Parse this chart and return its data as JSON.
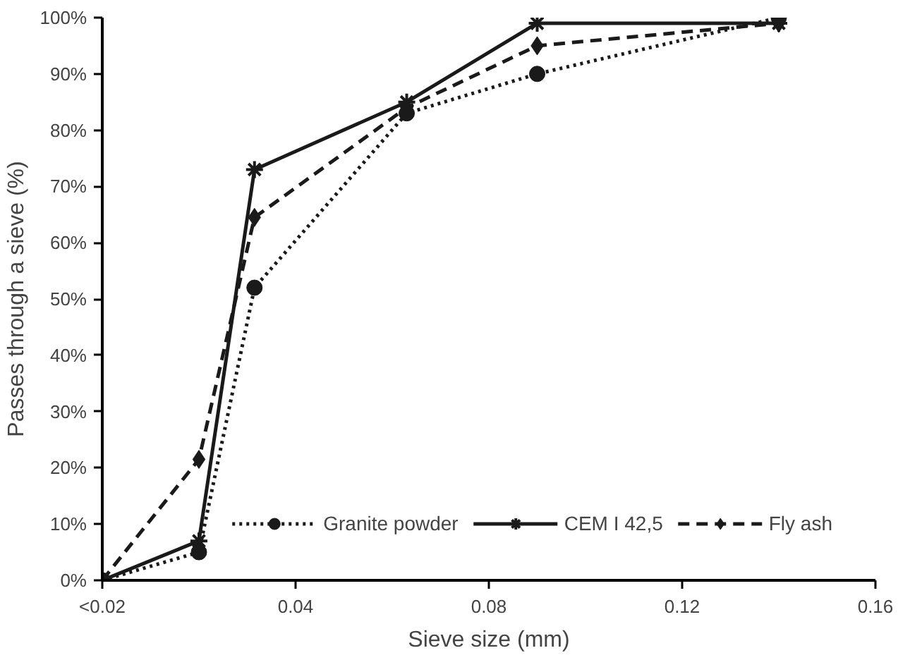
{
  "chart_data": {
    "type": "line",
    "xlabel": "Sieve size (mm)",
    "ylabel": "Passes through a sieve (%)",
    "xlim": [
      0,
      0.16
    ],
    "xticks": [
      {
        "value": 0,
        "label": "<0.02"
      },
      0.04,
      0.08,
      0.12,
      0.16
    ],
    "ylim": [
      0,
      100
    ],
    "yticks": [
      {
        "value": 0,
        "label": "0%"
      },
      {
        "value": 10,
        "label": "10%"
      },
      {
        "value": 20,
        "label": "20%"
      },
      {
        "value": 30,
        "label": "30%"
      },
      {
        "value": 40,
        "label": "40%"
      },
      {
        "value": 50,
        "label": "50%"
      },
      {
        "value": 60,
        "label": "60%"
      },
      {
        "value": 70,
        "label": "70%"
      },
      {
        "value": 80,
        "label": "80%"
      },
      {
        "value": 90,
        "label": "90%"
      },
      {
        "value": 100,
        "label": "100%"
      }
    ],
    "x": [
      0,
      0.02,
      0.0315,
      0.063,
      0.09,
      0.14
    ],
    "grid": false,
    "legend": "bottom right",
    "series": [
      {
        "name": "Granite powder",
        "color": "#1a1a1a",
        "marker": "circle",
        "line_style": "dotted",
        "values": [
          0,
          5,
          52,
          83,
          90,
          100
        ]
      },
      {
        "name": "CEM I 42,5",
        "color": "#1a1a1a",
        "marker": "cross",
        "line_style": "solid",
        "values": [
          0,
          7,
          73,
          85,
          99,
          99
        ]
      },
      {
        "name": "Fly ash",
        "color": "#1a1a1a",
        "marker": "diamond",
        "line_style": "dashed",
        "values": [
          0,
          21.5,
          64.5,
          84,
          95,
          99
        ]
      }
    ]
  }
}
